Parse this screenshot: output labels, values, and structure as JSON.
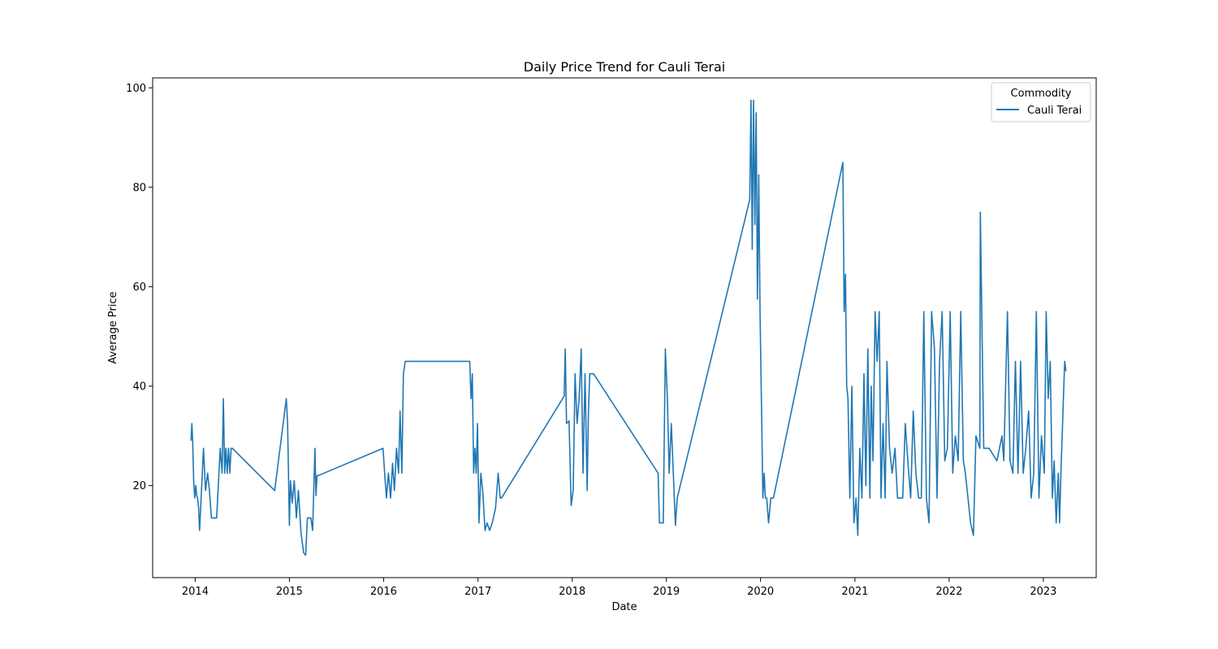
{
  "chart_data": {
    "type": "line",
    "title": "Daily Price Trend for Cauli Terai",
    "xlabel": "Date",
    "ylabel": "Average Price",
    "xlim": [
      "2013-07-20",
      "2023-07-25"
    ],
    "ylim": [
      1.5,
      102
    ],
    "x_ticks": [
      "2014",
      "2015",
      "2016",
      "2017",
      "2018",
      "2019",
      "2020",
      "2021",
      "2022",
      "2023"
    ],
    "y_ticks": [
      20,
      40,
      60,
      80,
      100
    ],
    "grid": false,
    "legend": {
      "title": "Commodity",
      "placement": "top-right"
    },
    "colors": {
      "series": "#1f77b4"
    },
    "series": [
      {
        "name": "Cauli Terai",
        "x": [
          "2013-12-16",
          "2013-12-19",
          "2013-12-22",
          "2013-12-26",
          "2013-12-30",
          "2014-01-03",
          "2014-01-07",
          "2014-01-10",
          "2014-01-14",
          "2014-01-18",
          "2014-02-02",
          "2014-02-10",
          "2014-02-18",
          "2014-02-25",
          "2014-03-05",
          "2014-03-15",
          "2014-03-25",
          "2014-04-08",
          "2014-04-15",
          "2014-04-20",
          "2014-04-25",
          "2014-04-30",
          "2014-05-05",
          "2014-05-10",
          "2014-05-15",
          "2014-05-20",
          "2014-05-25",
          "2014-11-05",
          "2014-12-20",
          "2014-12-25",
          "2015-01-01",
          "2015-01-05",
          "2015-01-12",
          "2015-01-20",
          "2015-01-28",
          "2015-02-05",
          "2015-02-15",
          "2015-02-25",
          "2015-03-05",
          "2015-03-12",
          "2015-03-18",
          "2015-03-25",
          "2015-04-01",
          "2015-04-10",
          "2015-04-14",
          "2015-04-18",
          "2015-04-22",
          "2015-12-30",
          "2016-01-05",
          "2016-01-12",
          "2016-01-20",
          "2016-01-28",
          "2016-02-05",
          "2016-02-12",
          "2016-02-20",
          "2016-02-28",
          "2016-03-05",
          "2016-03-12",
          "2016-03-18",
          "2016-03-25",
          "2016-11-30",
          "2016-12-05",
          "2016-12-10",
          "2016-12-15",
          "2016-12-20",
          "2016-12-25",
          "2016-12-30",
          "2017-01-05",
          "2017-01-12",
          "2017-01-20",
          "2017-01-28",
          "2017-02-05",
          "2017-02-15",
          "2017-02-25",
          "2017-03-10",
          "2017-03-20",
          "2017-03-28",
          "2017-04-02",
          "2017-12-01",
          "2017-12-05",
          "2017-12-10",
          "2017-12-20",
          "2017-12-28",
          "2018-01-05",
          "2018-01-12",
          "2018-01-20",
          "2018-01-28",
          "2018-02-05",
          "2018-02-12",
          "2018-02-20",
          "2018-02-28",
          "2018-03-05",
          "2018-03-10",
          "2018-03-18",
          "2018-03-25",
          "2018-11-30",
          "2018-12-05",
          "2018-12-20",
          "2018-12-28",
          "2019-01-05",
          "2019-01-12",
          "2019-01-20",
          "2019-01-28",
          "2019-02-05",
          "2019-02-12",
          "2019-11-20",
          "2019-11-25",
          "2019-11-30",
          "2019-12-05",
          "2019-12-10",
          "2019-12-15",
          "2019-12-20",
          "2019-12-25",
          "2019-12-30",
          "2020-01-05",
          "2020-01-10",
          "2020-01-15",
          "2020-01-20",
          "2020-01-25",
          "2020-02-01",
          "2020-02-10",
          "2020-02-20",
          "2020-11-15",
          "2020-11-20",
          "2020-11-25",
          "2020-11-30",
          "2020-12-05",
          "2020-12-12",
          "2020-12-20",
          "2020-12-28",
          "2021-01-05",
          "2021-01-12",
          "2021-01-20",
          "2021-01-28",
          "2021-02-05",
          "2021-02-12",
          "2021-02-20",
          "2021-02-28",
          "2021-03-05",
          "2021-03-12",
          "2021-03-20",
          "2021-03-28",
          "2021-04-05",
          "2021-04-12",
          "2021-04-20",
          "2021-04-28",
          "2021-05-05",
          "2021-05-15",
          "2021-05-25",
          "2021-06-05",
          "2021-06-15",
          "2021-06-25",
          "2021-07-05",
          "2021-07-15",
          "2021-07-25",
          "2021-08-05",
          "2021-08-15",
          "2021-08-25",
          "2021-09-05",
          "2021-09-15",
          "2021-09-25",
          "2021-10-05",
          "2021-10-15",
          "2021-10-25",
          "2021-11-05",
          "2021-11-15",
          "2021-11-25",
          "2021-12-05",
          "2021-12-15",
          "2021-12-25",
          "2022-01-05",
          "2022-01-15",
          "2022-01-25",
          "2022-02-05",
          "2022-02-15",
          "2022-02-25",
          "2022-03-05",
          "2022-03-15",
          "2022-03-25",
          "2022-04-05",
          "2022-04-15",
          "2022-04-30",
          "2022-05-02",
          "2022-05-15",
          "2022-06-05",
          "2022-07-05",
          "2022-07-25",
          "2022-08-01",
          "2022-08-15",
          "2022-08-25",
          "2022-09-05",
          "2022-09-15",
          "2022-09-25",
          "2022-10-05",
          "2022-10-15",
          "2022-10-25",
          "2022-11-05",
          "2022-11-15",
          "2022-11-25",
          "2022-12-05",
          "2022-12-15",
          "2022-12-25",
          "2023-01-05",
          "2023-01-12",
          "2023-01-20",
          "2023-01-28",
          "2023-02-05",
          "2023-02-12",
          "2023-02-20",
          "2023-02-28",
          "2023-03-05",
          "2023-03-10",
          "2023-03-15",
          "2023-03-20",
          "2023-03-25",
          "2023-03-30"
        ],
        "y": [
          29,
          32.5,
          29,
          21,
          17.5,
          20,
          18,
          17.5,
          15.5,
          11,
          27.5,
          19,
          22.5,
          19,
          13.5,
          13.5,
          13.5,
          27.5,
          22.5,
          37.5,
          22.5,
          27.5,
          22.5,
          27.5,
          22.5,
          27.5,
          27.5,
          19,
          37.5,
          32.5,
          12,
          21,
          16.5,
          21,
          13.5,
          19,
          10.5,
          6.5,
          6,
          13.5,
          13.5,
          13.5,
          11,
          27.5,
          18,
          22,
          22,
          27.5,
          22.5,
          17.5,
          22.5,
          17.5,
          24.5,
          19,
          27.5,
          22.5,
          35,
          22.5,
          42.5,
          45,
          45,
          37.5,
          42.5,
          22.5,
          27.5,
          22.5,
          32.5,
          12.5,
          22.5,
          18.5,
          11,
          12.5,
          11,
          12.5,
          15.5,
          22.5,
          17.5,
          17.5,
          38,
          47.5,
          32.5,
          33,
          16,
          19,
          42.5,
          32.5,
          37.5,
          47.5,
          22.5,
          42.5,
          19,
          35,
          42.5,
          42.5,
          42.5,
          22.5,
          12.5,
          12.5,
          47.5,
          37.5,
          22.5,
          32.5,
          22.5,
          12,
          17.5,
          77.5,
          97.5,
          67.5,
          97.5,
          72.5,
          95,
          57.5,
          82.5,
          55,
          35,
          17.5,
          22.5,
          17.5,
          17.5,
          12.5,
          17.5,
          17.5,
          85,
          55,
          62.5,
          40,
          37.5,
          17.5,
          40,
          12.5,
          17.5,
          10,
          27.5,
          17.5,
          42.5,
          20,
          47.5,
          17.5,
          40,
          25,
          55,
          45,
          55,
          17.5,
          32.5,
          17.5,
          45,
          27.5,
          22.5,
          27.5,
          17.5,
          17.5,
          17.5,
          32.5,
          25,
          17.5,
          35,
          22.5,
          17.5,
          17.5,
          55,
          17.5,
          12.5,
          55,
          47.5,
          17.5,
          45,
          55,
          25,
          27.5,
          55,
          22.5,
          30,
          25,
          55,
          25,
          22.5,
          17.5,
          12.5,
          10,
          30,
          27.5,
          75,
          27.5,
          27.5,
          25,
          30,
          25,
          55,
          25,
          22.5,
          45,
          22.5,
          45,
          22.5,
          27.5,
          35,
          17.5,
          22.5,
          55,
          17.5,
          30,
          22.5,
          55,
          37.5,
          45,
          17.5,
          25,
          12.5,
          22.5,
          12.5,
          22.5,
          30,
          37.5,
          45,
          43
        ]
      }
    ]
  }
}
